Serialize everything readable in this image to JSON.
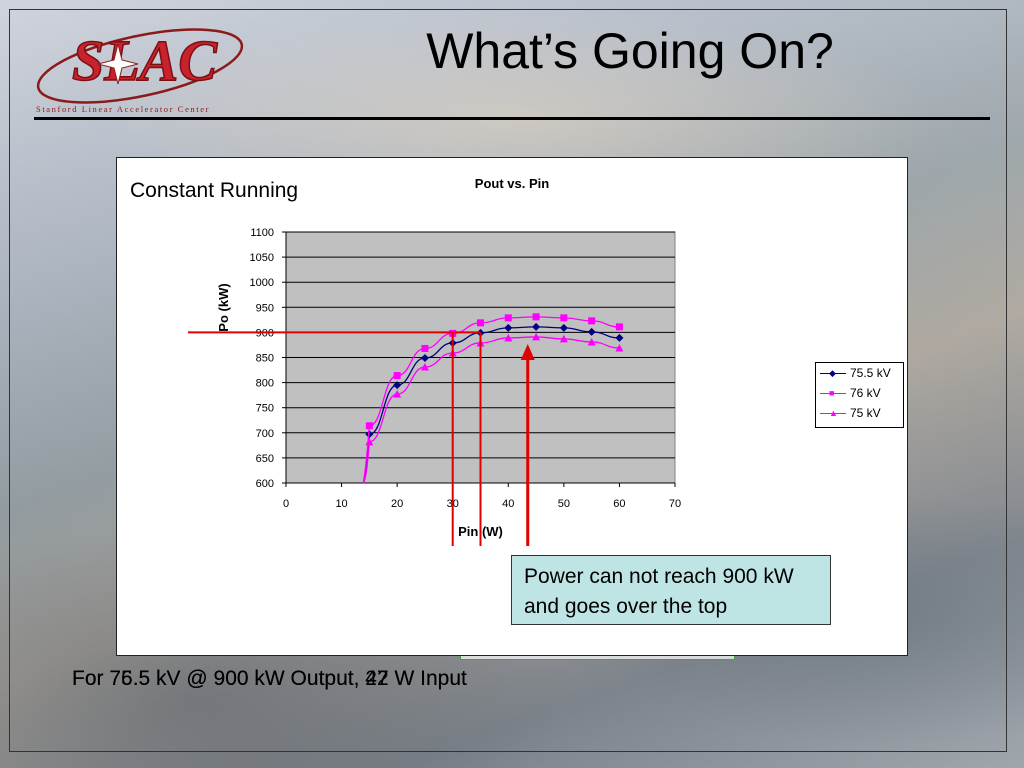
{
  "slide": {
    "title": "What’s Going On?",
    "logo_text": "SLAC",
    "logo_subtitle": "Stanford Linear Accelerator Center",
    "panel_label": "Constant Running",
    "callout": "Power can not reach 900 kW and goes over the top",
    "footer_a": "For 76.5 kV @ 900 kW Output, 42 W Input",
    "footer_b": "For 75.5 kV @ 900 kW Output, 27 W Input"
  },
  "colors": {
    "series_75_5": "#000080",
    "series_76": "#ff00ff",
    "series_75": "#ff00ff",
    "annotation": "#e00000",
    "plot_bg": "#c0c0c0",
    "callout_bg": "#bfe4e4"
  },
  "chart_data": {
    "type": "line",
    "title": "Pout vs. Pin",
    "xlabel": "Pin (W)",
    "ylabel": "Po (kW)",
    "xlim": [
      0,
      70
    ],
    "ylim": [
      600,
      1100
    ],
    "xticks": [
      0,
      10,
      20,
      30,
      40,
      50,
      60,
      70
    ],
    "yticks": [
      600,
      650,
      700,
      750,
      800,
      850,
      900,
      950,
      1000,
      1050,
      1100
    ],
    "grid": "horizontal",
    "legend_position": "right",
    "x": [
      15,
      20,
      25,
      30,
      35,
      40,
      45,
      50,
      55,
      60
    ],
    "series": [
      {
        "name": "75.5 kV",
        "marker": "diamond",
        "values": [
          697,
          795,
          849,
          879,
          899,
          909,
          911,
          909,
          901,
          889
        ]
      },
      {
        "name": "76 kV",
        "marker": "square",
        "values": [
          714,
          814,
          868,
          898,
          919,
          929,
          931,
          929,
          923,
          911
        ]
      },
      {
        "name": "75 kV",
        "marker": "triangle",
        "values": [
          682,
          777,
          831,
          859,
          879,
          889,
          891,
          887,
          881,
          869
        ]
      }
    ],
    "annotations": {
      "hline_y": 900,
      "vlines_x": [
        30,
        35
      ],
      "arrow_x": 43.5
    }
  }
}
